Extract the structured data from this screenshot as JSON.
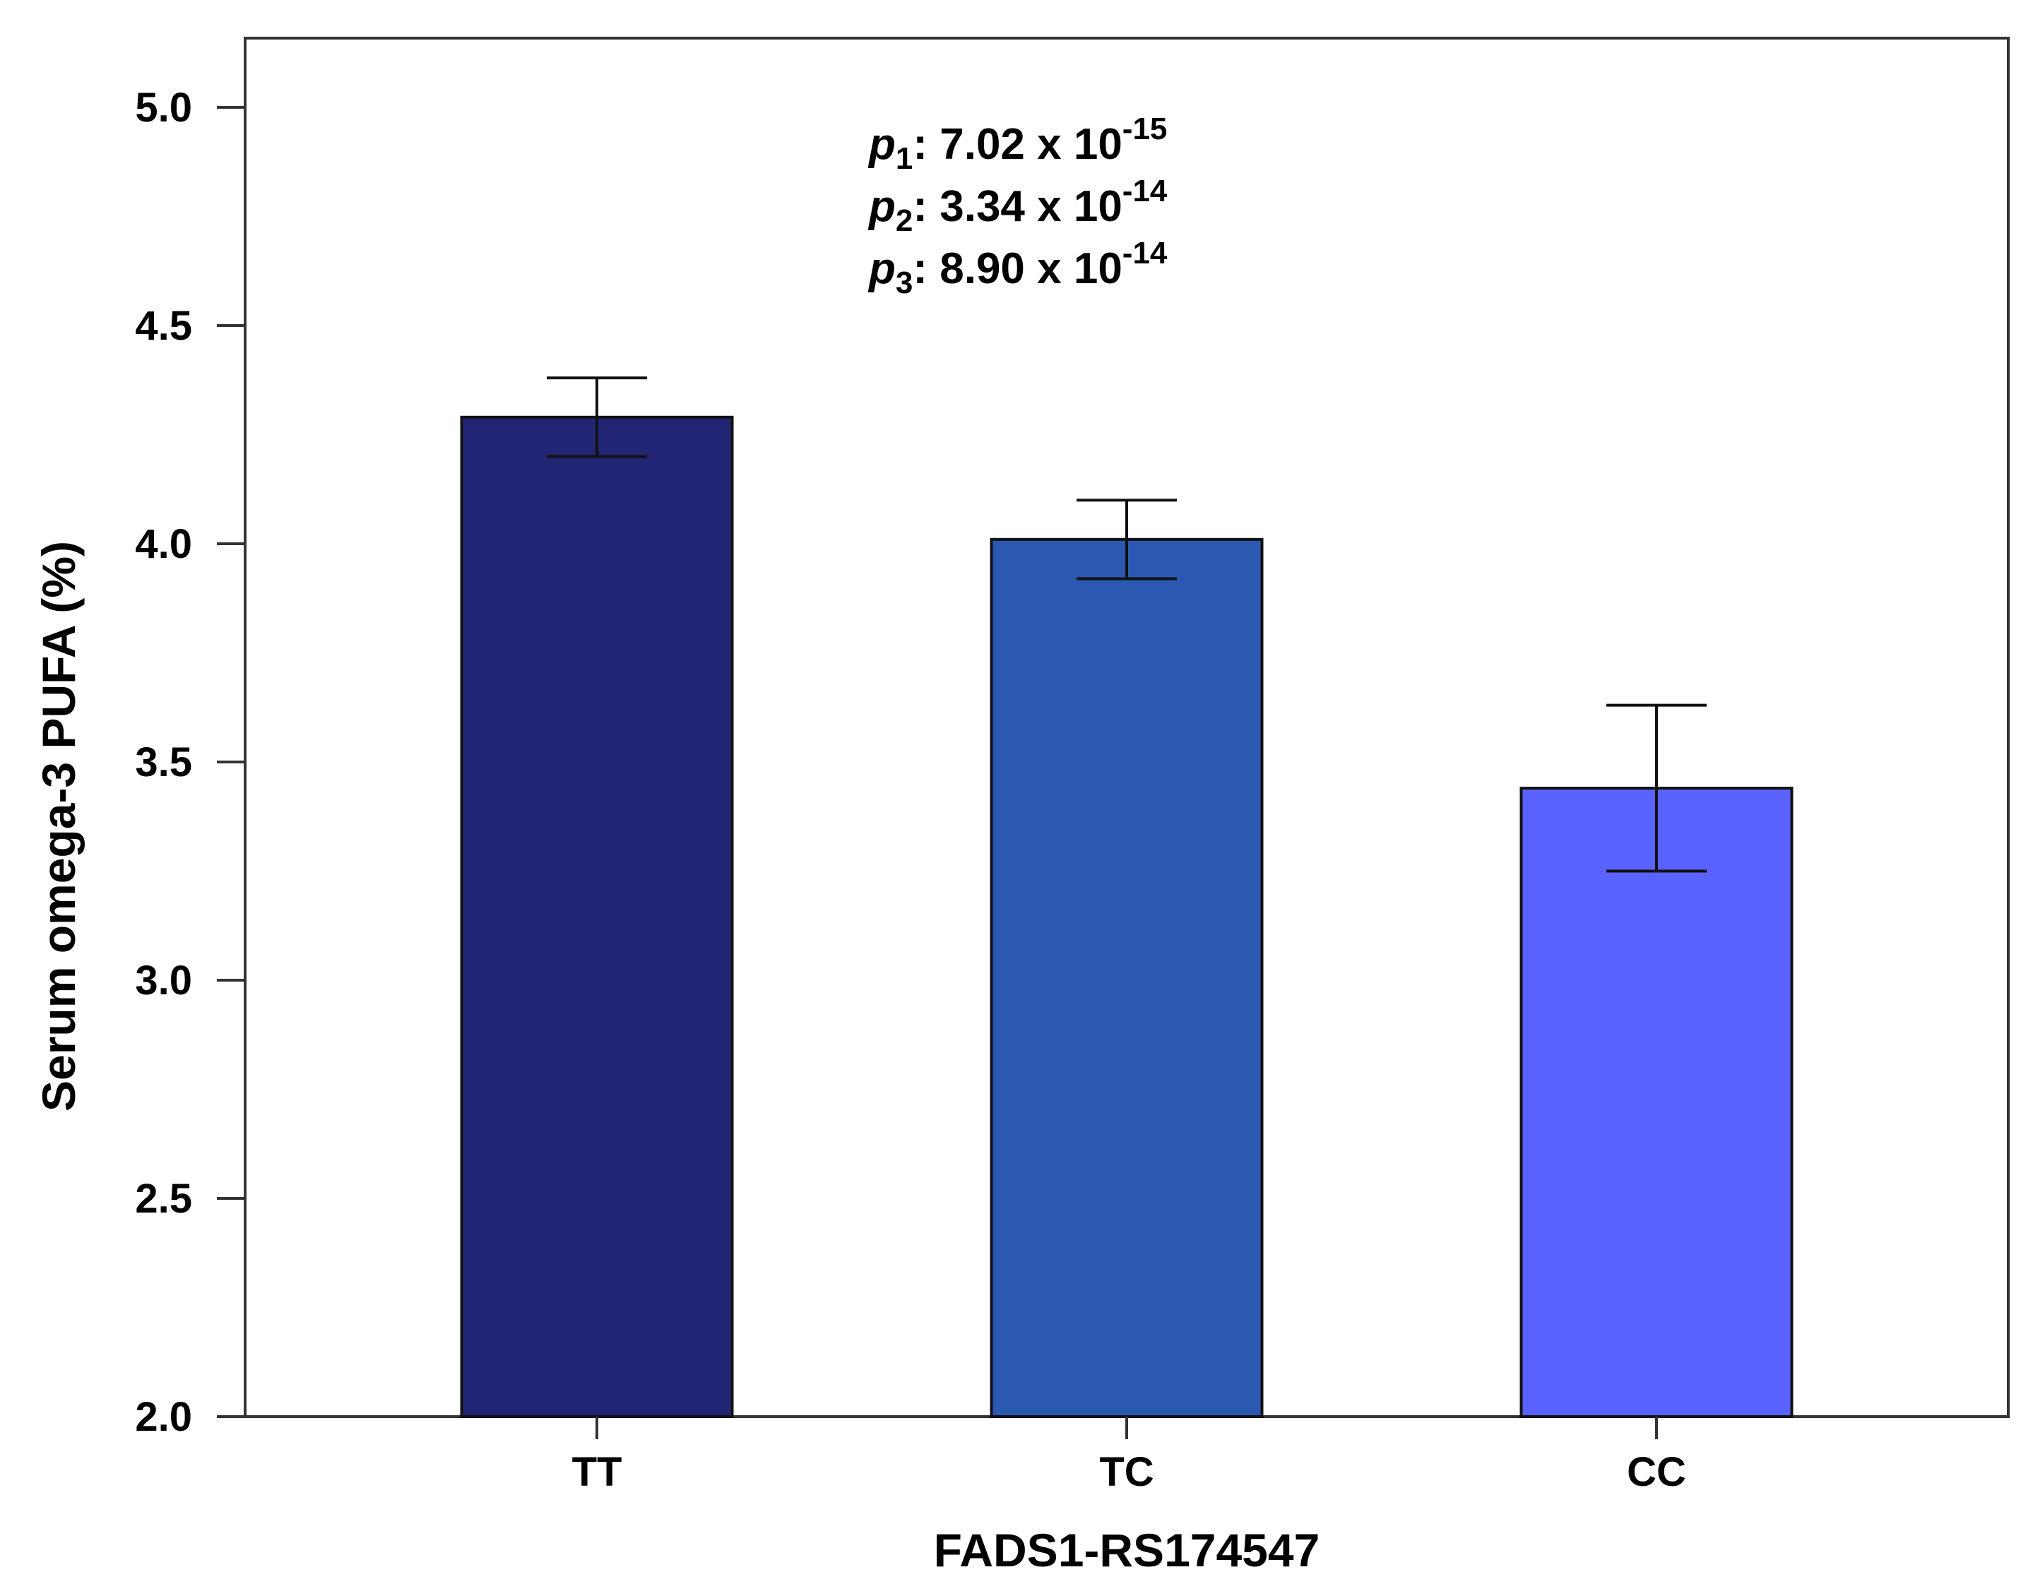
{
  "chart_data": {
    "type": "bar",
    "title": "",
    "xlabel": "FADS1-RS174547",
    "ylabel": "Serum omega-3 PUFA (%)",
    "categories": [
      "TT",
      "TC",
      "CC"
    ],
    "values": [
      4.29,
      4.01,
      3.44
    ],
    "error_low": [
      4.2,
      3.92,
      3.25
    ],
    "error_high": [
      4.38,
      4.1,
      3.63
    ],
    "colors": [
      "#212573",
      "#2B58B0",
      "#5A62FF"
    ],
    "ylim": [
      2.0,
      5.0
    ],
    "yticks": [
      2.0,
      2.5,
      3.0,
      3.5,
      4.0,
      4.5,
      5.0
    ],
    "ytick_labels": [
      "2.0",
      "2.5",
      "3.0",
      "3.5",
      "4.0",
      "4.5",
      "5.0"
    ],
    "grid": false,
    "annotations": [
      {
        "symbol": "p",
        "sub": "1",
        "text": ": 7.02 x 10",
        "exp": "-15"
      },
      {
        "symbol": "p",
        "sub": "2",
        "text": ": 3.34 x 10",
        "exp": "-14"
      },
      {
        "symbol": "p",
        "sub": "3",
        "text": ": 8.90 x 10",
        "exp": "-14"
      }
    ]
  }
}
